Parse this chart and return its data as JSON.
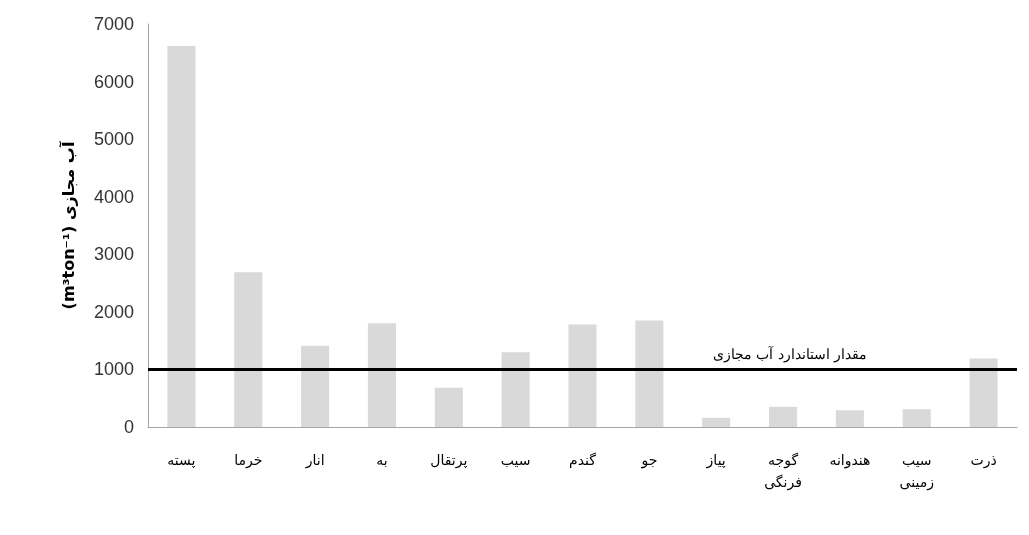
{
  "chart_data": {
    "type": "bar",
    "ylabel": "(m³ton⁻¹) آب مجازی",
    "categories": [
      "پسته",
      "خرما",
      "انار",
      "به",
      "پرتقال",
      "سیب",
      "گندم",
      "جو",
      "پیاز",
      "گوجه فرنگی",
      "هندوانه",
      "سیب زمینی",
      "ذرت"
    ],
    "values": [
      6620,
      2690,
      1410,
      1800,
      680,
      1300,
      1780,
      1850,
      160,
      350,
      290,
      310,
      1190
    ],
    "color": "#d9d9d9",
    "ylim": [
      0,
      7000
    ],
    "yticks": [
      0,
      1000,
      2000,
      3000,
      4000,
      5000,
      6000,
      7000
    ],
    "ref_lines": [
      {
        "axis": "y",
        "value": 1000,
        "label": "مقدار استاندارد آب مجازی",
        "color": "#000000"
      }
    ],
    "grid": false
  }
}
